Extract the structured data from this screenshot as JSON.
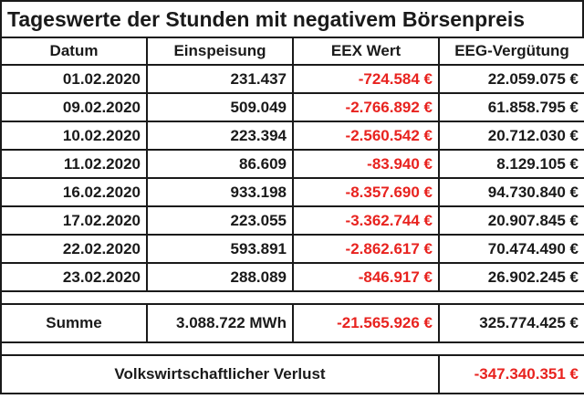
{
  "title": "Tageswerte der Stunden mit negativem Börsenpreis",
  "headers": {
    "date": "Datum",
    "feed_in": "Einspeisung",
    "eex": "EEX Wert",
    "eeg": "EEG-Vergütung"
  },
  "rows": [
    {
      "date": "01.02.2020",
      "feed_in": "231.437",
      "eex": "-724.584 €",
      "eeg": "22.059.075 €"
    },
    {
      "date": "09.02.2020",
      "feed_in": "509.049",
      "eex": "-2.766.892 €",
      "eeg": "61.858.795 €"
    },
    {
      "date": "10.02.2020",
      "feed_in": "223.394",
      "eex": "-2.560.542 €",
      "eeg": "20.712.030 €"
    },
    {
      "date": "11.02.2020",
      "feed_in": "86.609",
      "eex": "-83.940 €",
      "eeg": "8.129.105 €"
    },
    {
      "date": "16.02.2020",
      "feed_in": "933.198",
      "eex": "-8.357.690 €",
      "eeg": "94.730.840 €"
    },
    {
      "date": "17.02.2020",
      "feed_in": "223.055",
      "eex": "-3.362.744 €",
      "eeg": "20.907.845 €"
    },
    {
      "date": "22.02.2020",
      "feed_in": "593.891",
      "eex": "-2.862.617 €",
      "eeg": "70.474.490 €"
    },
    {
      "date": "23.02.2020",
      "feed_in": "288.089",
      "eex": "-846.917 €",
      "eeg": "26.902.245 €"
    }
  ],
  "sum": {
    "label": "Summe",
    "feed_in": "3.088.722 MWh",
    "eex": "-21.565.926 €",
    "eeg": "325.774.425 €"
  },
  "loss": {
    "label": "Volkswirtschaftlicher Verlust",
    "value": "-347.340.351 €"
  },
  "colors": {
    "negative": "#e8231f",
    "border": "#1a1a1a"
  }
}
